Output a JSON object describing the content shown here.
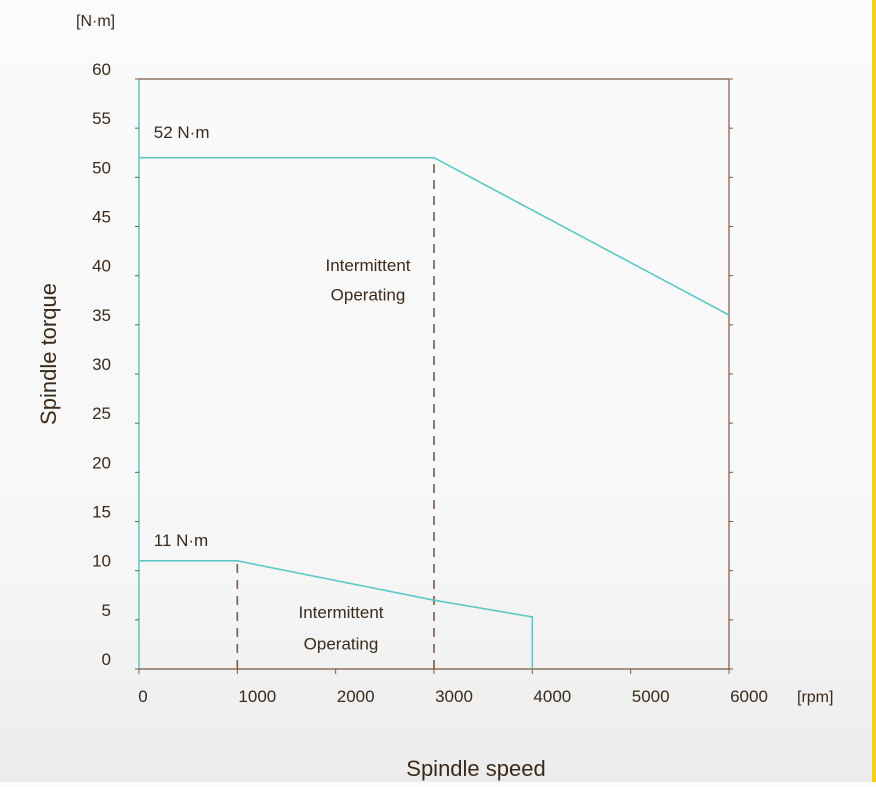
{
  "chart_data": {
    "type": "line",
    "xlabel": "Spindle speed",
    "ylabel": "Spindle  torque",
    "x_unit": "[rpm]",
    "y_unit": "[N·m]",
    "xlim": [
      0,
      6000
    ],
    "ylim": [
      0,
      60
    ],
    "x_ticks": [
      0,
      1000,
      2000,
      3000,
      4000,
      5000,
      6000
    ],
    "y_ticks": [
      0,
      5,
      10,
      15,
      20,
      25,
      30,
      35,
      40,
      45,
      50,
      55,
      60
    ],
    "grid": false,
    "series": [
      {
        "x": [
          0,
          3000,
          6000
        ],
        "y": [
          52,
          52,
          36
        ],
        "color": "#5ec8c4"
      },
      {
        "x": [
          0,
          1000,
          3000,
          4000,
          4000
        ],
        "y": [
          11,
          11,
          7,
          5.3,
          0
        ],
        "color": "#5ec8c4"
      }
    ],
    "dashed_markers": [
      {
        "x": 3000,
        "y_from": 0,
        "y_to": 52,
        "color": "#7a5a44"
      },
      {
        "x": 1000,
        "y_from": 0,
        "y_to": 11,
        "color": "#7a5a44"
      }
    ],
    "annotations": [
      {
        "text": "52 N·m",
        "x": 150,
        "y": 54
      },
      {
        "text": "11 N·m",
        "x": 150,
        "y": 12.5
      },
      {
        "text": "Intermittent",
        "x": 2000,
        "y": 40.5
      },
      {
        "text": "Operating",
        "x": 2000,
        "y": 37.5
      },
      {
        "text": "Intermittent",
        "x": 2000,
        "y": 5.2
      },
      {
        "text": "Operating",
        "x": 2000,
        "y": 2
      }
    ],
    "axis_color": "#7a5a44"
  }
}
